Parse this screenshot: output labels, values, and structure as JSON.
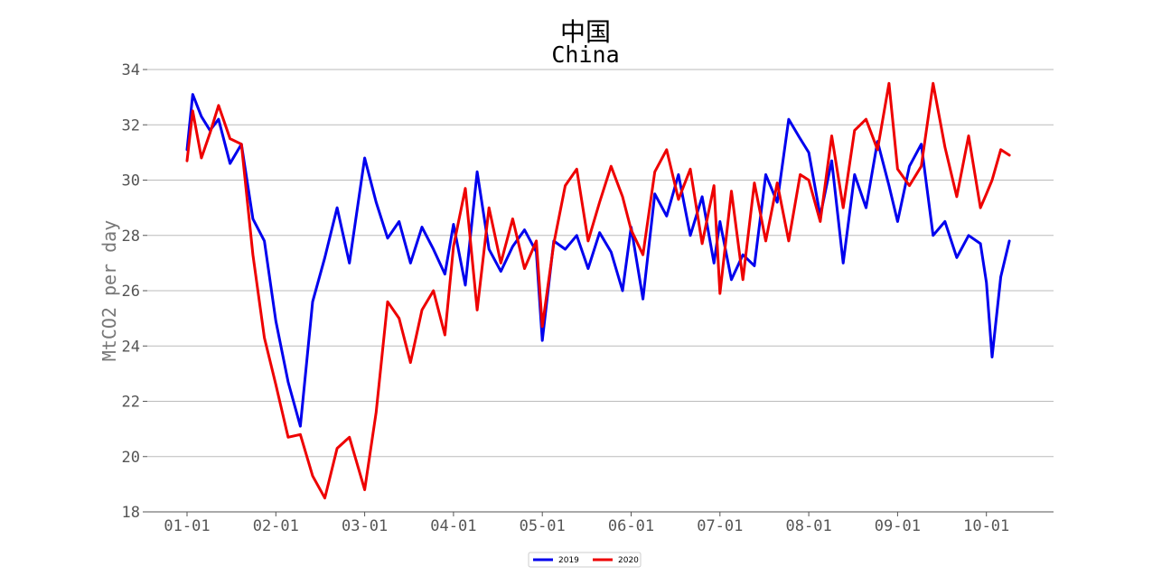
{
  "chart_data": {
    "type": "line",
    "title": "中国",
    "subtitle": "China",
    "xlabel": "",
    "ylabel": "MtCO2 per day",
    "ylim": [
      18,
      34
    ],
    "yticks": [
      18,
      20,
      22,
      24,
      26,
      28,
      30,
      32,
      34
    ],
    "xtick_labels": [
      "01-01",
      "02-01",
      "03-01",
      "04-01",
      "05-01",
      "06-01",
      "07-01",
      "08-01",
      "09-01",
      "10-01"
    ],
    "grid": "horizontal",
    "legend": "bottom-center",
    "x": [
      "01-01",
      "01-03",
      "01-06",
      "01-09",
      "01-12",
      "01-16",
      "01-20",
      "01-24",
      "01-28",
      "02-01",
      "02-05",
      "02-09",
      "02-13",
      "02-17",
      "02-21",
      "02-25",
      "03-01",
      "03-05",
      "03-09",
      "03-13",
      "03-17",
      "03-21",
      "03-25",
      "03-29",
      "04-01",
      "04-05",
      "04-09",
      "04-13",
      "04-17",
      "04-21",
      "04-25",
      "04-29",
      "05-01",
      "05-05",
      "05-09",
      "05-13",
      "05-17",
      "05-21",
      "05-25",
      "05-29",
      "06-01",
      "06-05",
      "06-09",
      "06-13",
      "06-17",
      "06-21",
      "06-25",
      "06-29",
      "07-01",
      "07-05",
      "07-09",
      "07-13",
      "07-17",
      "07-21",
      "07-25",
      "07-29",
      "08-01",
      "08-05",
      "08-09",
      "08-13",
      "08-17",
      "08-21",
      "08-25",
      "08-29",
      "09-01",
      "09-05",
      "09-09",
      "09-13",
      "09-17",
      "09-21",
      "09-25",
      "09-29",
      "10-01",
      "10-03",
      "10-06",
      "10-09"
    ],
    "series": [
      {
        "name": "2019",
        "color": "#0000ee",
        "values": [
          31.1,
          33.1,
          32.3,
          31.8,
          32.2,
          30.6,
          31.3,
          28.6,
          27.8,
          24.9,
          22.7,
          21.1,
          25.6,
          27.2,
          29.0,
          27.0,
          30.8,
          29.2,
          27.9,
          28.5,
          27.0,
          28.3,
          27.5,
          26.6,
          28.4,
          26.2,
          30.3,
          27.5,
          26.7,
          27.6,
          28.2,
          27.4,
          24.2,
          27.8,
          27.5,
          28.0,
          26.8,
          28.1,
          27.4,
          26.0,
          28.3,
          25.7,
          29.5,
          28.7,
          30.2,
          28.0,
          29.4,
          27.0,
          28.5,
          26.4,
          27.3,
          26.9,
          30.2,
          29.2,
          32.2,
          31.5,
          31.0,
          28.7,
          30.7,
          27.0,
          30.2,
          29.0,
          31.4,
          29.8,
          28.5,
          30.5,
          31.3,
          28.0,
          28.5,
          27.2,
          28.0,
          27.7,
          26.3,
          23.6,
          26.5,
          27.8
        ]
      },
      {
        "name": "2020",
        "color": "#ee0000",
        "values": [
          30.7,
          32.5,
          30.8,
          31.7,
          32.7,
          31.5,
          31.3,
          27.3,
          24.3,
          22.6,
          20.7,
          20.8,
          19.3,
          18.5,
          20.3,
          20.7,
          18.8,
          21.6,
          25.6,
          25.0,
          23.4,
          25.3,
          26.0,
          24.4,
          27.6,
          29.7,
          25.3,
          29.0,
          27.0,
          28.6,
          26.8,
          27.8,
          24.7,
          27.7,
          29.8,
          30.4,
          27.8,
          29.2,
          30.5,
          29.4,
          28.2,
          27.3,
          30.3,
          31.1,
          29.3,
          30.4,
          27.7,
          29.8,
          25.9,
          29.6,
          26.4,
          29.9,
          27.8,
          29.9,
          27.8,
          30.2,
          30.0,
          28.5,
          31.6,
          29.0,
          31.8,
          32.2,
          31.1,
          33.5,
          30.4,
          29.8,
          30.5,
          33.5,
          31.2,
          29.4,
          31.6,
          29.0,
          29.5,
          30.0,
          31.1,
          30.9
        ]
      }
    ]
  }
}
